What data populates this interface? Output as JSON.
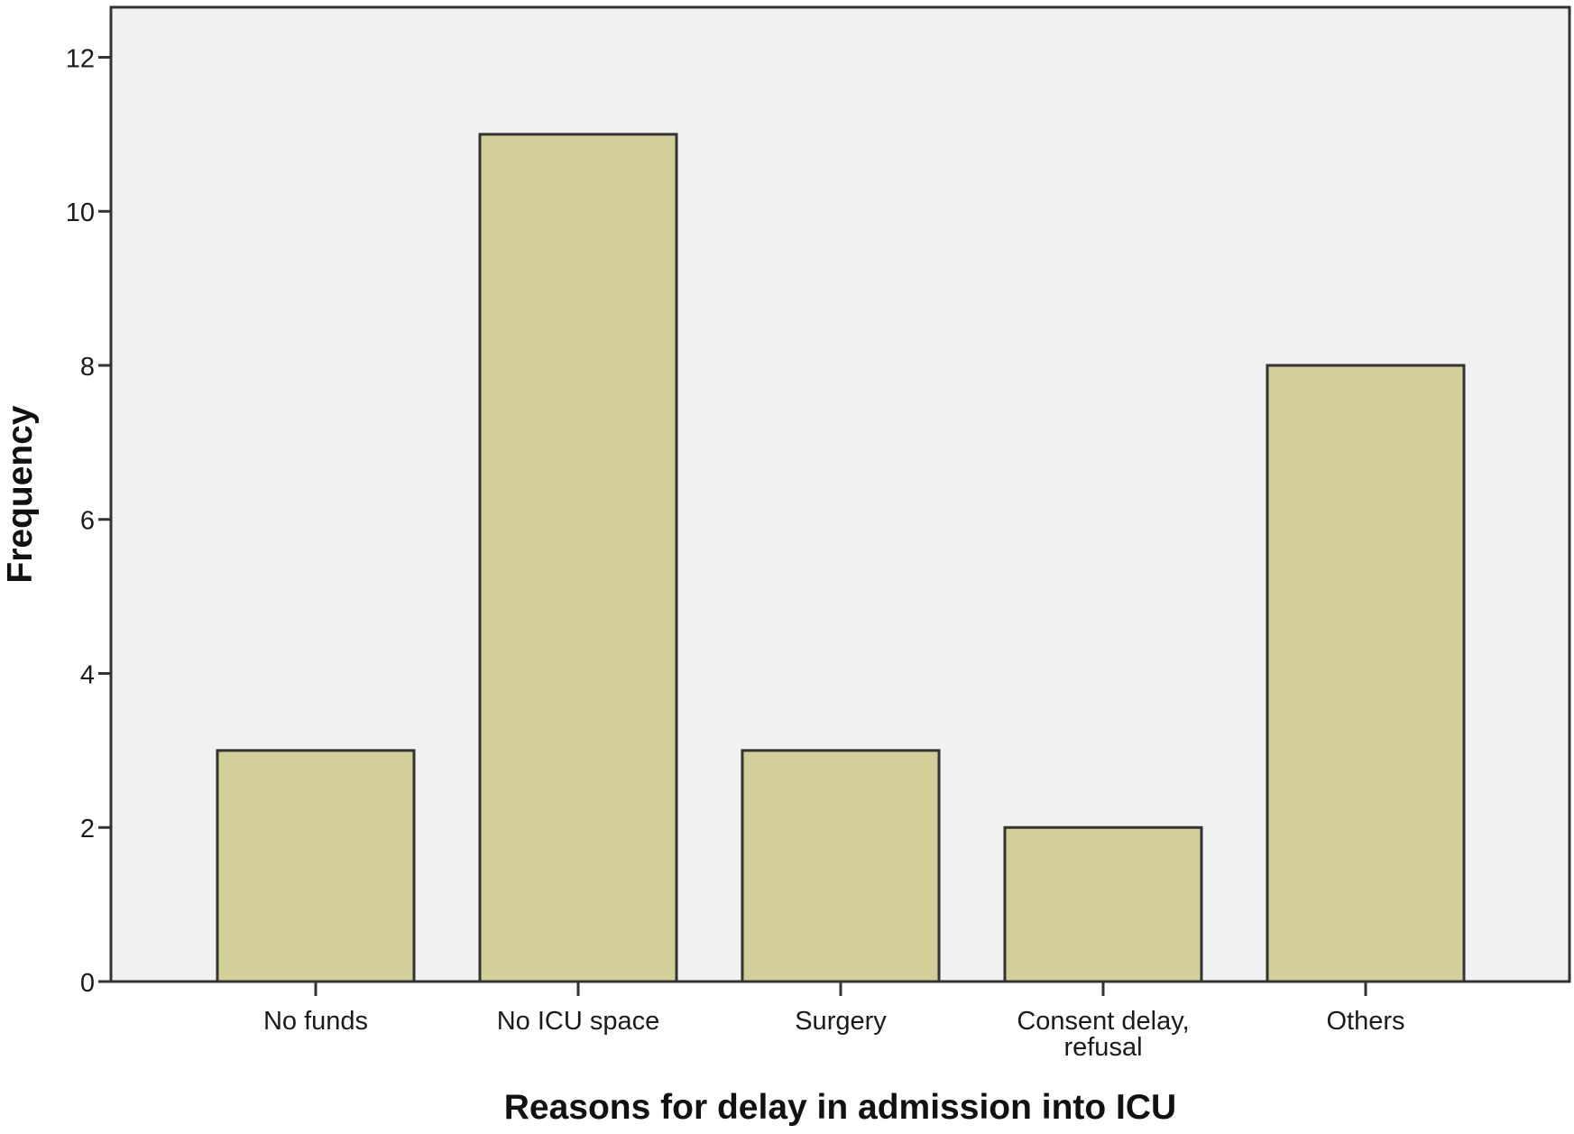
{
  "chart_data": {
    "type": "bar",
    "title": "",
    "xlabel": "Reasons for delay in admission into ICU",
    "ylabel": "Frequency",
    "categories": [
      [
        "No funds"
      ],
      [
        "No ICU space"
      ],
      [
        "Surgery"
      ],
      [
        "Consent delay,",
        "refusal"
      ],
      [
        "Others"
      ]
    ],
    "values": [
      3,
      11,
      3,
      2,
      8
    ],
    "ylim": [
      0,
      12.65
    ],
    "yticks": [
      0,
      2,
      4,
      6,
      8,
      10,
      12
    ],
    "grid": false,
    "legend": "none",
    "colors": {
      "bar_fill": "#d3cf98",
      "bar_stroke": "#333333",
      "plot_bg": "#f1f1f1",
      "axis": "#333333"
    }
  }
}
